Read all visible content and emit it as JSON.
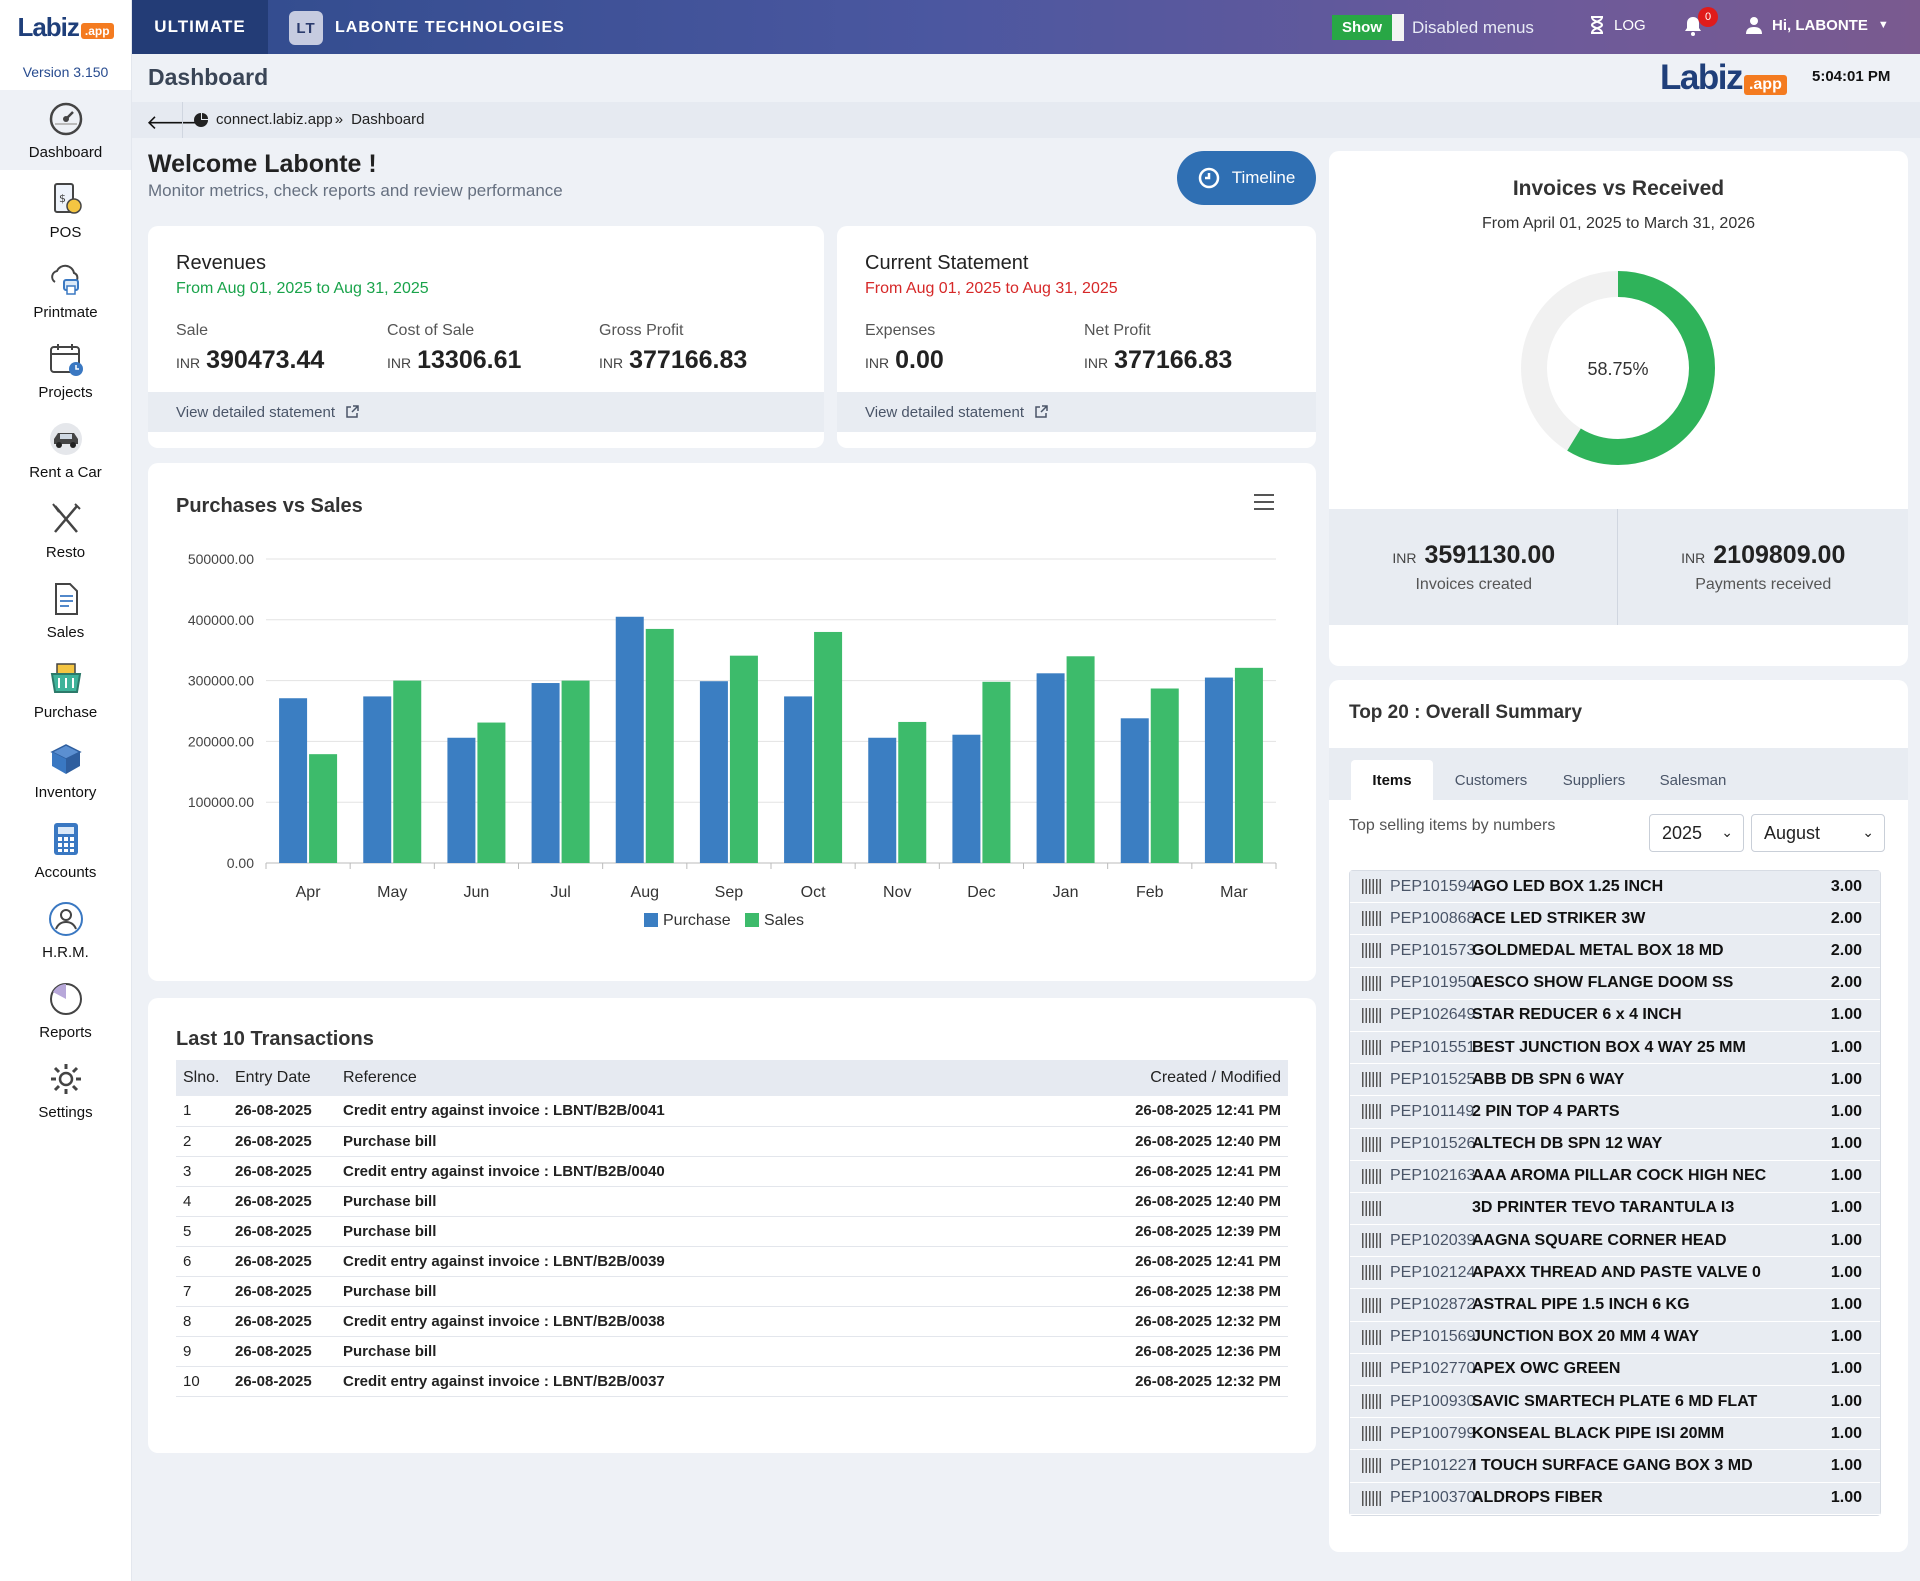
{
  "brand": {
    "word": "Labiz",
    "suffix": ".app"
  },
  "version": "Version 3.150",
  "nav": [
    {
      "label": "Dashboard",
      "icon": "gauge-icon",
      "active": true
    },
    {
      "label": "POS",
      "icon": "pos-receipt-icon"
    },
    {
      "label": "Printmate",
      "icon": "cloud-printer-icon"
    },
    {
      "label": "Projects",
      "icon": "calendar-clock-icon"
    },
    {
      "label": "Rent a Car",
      "icon": "car-icon"
    },
    {
      "label": "Resto",
      "icon": "fork-knife-icon"
    },
    {
      "label": "Sales",
      "icon": "document-icon"
    },
    {
      "label": "Purchase",
      "icon": "basket-icon"
    },
    {
      "label": "Inventory",
      "icon": "box-icon"
    },
    {
      "label": "Accounts",
      "icon": "calculator-icon"
    },
    {
      "label": "H.R.M.",
      "icon": "user-circle-icon"
    },
    {
      "label": "Reports",
      "icon": "pie-chart-icon"
    },
    {
      "label": "Settings",
      "icon": "gear-icon"
    }
  ],
  "topbar": {
    "plan": "ULTIMATE",
    "company_badge": "LT",
    "company": "LABONTE TECHNOLOGIES",
    "toggle_label": "Show",
    "disabled_menus": "Disabled menus",
    "log": "LOG",
    "notifications": "0",
    "user": "Hi, LABONTE"
  },
  "page": {
    "title": "Dashboard",
    "time": "5:04:01 PM",
    "crumb_site": "connect.labiz.app",
    "crumb_sep": "»",
    "crumb_page": "Dashboard",
    "welcome": "Welcome Labonte !",
    "subtitle": "Monitor metrics, check reports and review performance",
    "timeline": "Timeline"
  },
  "revenues": {
    "title": "Revenues",
    "range": "From Aug 01, 2025 to Aug 31, 2025",
    "currency": "INR",
    "sale_label": "Sale",
    "sale": "390473.44",
    "cost_label": "Cost of Sale",
    "cost": "13306.61",
    "gross_label": "Gross Profit",
    "gross": "377166.83",
    "link": "View detailed statement"
  },
  "statement": {
    "title": "Current Statement",
    "range": "From Aug 01, 2025 to Aug 31, 2025",
    "currency": "INR",
    "expenses_label": "Expenses",
    "expenses": "0.00",
    "net_label": "Net Profit",
    "net": "377166.83",
    "link": "View detailed statement"
  },
  "chart_data": {
    "type": "bar",
    "title": "Purchases vs Sales",
    "categories": [
      "Apr",
      "May",
      "Jun",
      "Jul",
      "Aug",
      "Sep",
      "Oct",
      "Nov",
      "Dec",
      "Jan",
      "Feb",
      "Mar"
    ],
    "series": [
      {
        "name": "Purchase",
        "color": "#3b7ec2",
        "values": [
          271000,
          274000,
          206000,
          296000,
          405000,
          299000,
          274000,
          206000,
          211000,
          312000,
          238000,
          305000
        ]
      },
      {
        "name": "Sales",
        "color": "#3dbb6b",
        "values": [
          179000,
          300000,
          231000,
          300000,
          385000,
          341000,
          380000,
          232000,
          298000,
          340000,
          287000,
          321000
        ]
      }
    ],
    "ylim": [
      0,
      500000
    ],
    "yticks": [
      "0.00",
      "100000.00",
      "200000.00",
      "300000.00",
      "400000.00",
      "500000.00"
    ],
    "legend": "bottom-center",
    "grid": true
  },
  "transactions": {
    "title": "Last 10 Transactions",
    "headers": [
      "Slno.",
      "Entry Date",
      "Reference",
      "Created / Modified"
    ],
    "rows": [
      [
        "1",
        "26-08-2025",
        "Credit entry against invoice : LBNT/B2B/0041",
        "26-08-2025 12:41 PM"
      ],
      [
        "2",
        "26-08-2025",
        "Purchase bill",
        "26-08-2025 12:40 PM"
      ],
      [
        "3",
        "26-08-2025",
        "Credit entry against invoice : LBNT/B2B/0040",
        "26-08-2025 12:41 PM"
      ],
      [
        "4",
        "26-08-2025",
        "Purchase bill",
        "26-08-2025 12:40 PM"
      ],
      [
        "5",
        "26-08-2025",
        "Purchase bill",
        "26-08-2025 12:39 PM"
      ],
      [
        "6",
        "26-08-2025",
        "Credit entry against invoice : LBNT/B2B/0039",
        "26-08-2025 12:41 PM"
      ],
      [
        "7",
        "26-08-2025",
        "Purchase bill",
        "26-08-2025 12:38 PM"
      ],
      [
        "8",
        "26-08-2025",
        "Credit entry against invoice : LBNT/B2B/0038",
        "26-08-2025 12:32 PM"
      ],
      [
        "9",
        "26-08-2025",
        "Purchase bill",
        "26-08-2025 12:36 PM"
      ],
      [
        "10",
        "26-08-2025",
        "Credit entry against invoice : LBNT/B2B/0037",
        "26-08-2025 12:32 PM"
      ]
    ]
  },
  "invoices": {
    "title": "Invoices vs Received",
    "range": "From April 01, 2025 to March 31, 2026",
    "percent": "58.75%",
    "percent_value": 0.5875,
    "currency": "INR",
    "created": "3591130.00",
    "created_label": "Invoices created",
    "received": "2109809.00",
    "received_label": "Payments received"
  },
  "top20": {
    "title": "Top 20 : Overall Summary",
    "tabs": [
      "Items",
      "Customers",
      "Suppliers",
      "Salesman"
    ],
    "subtitle": "Top selling items by numbers",
    "year": "2025",
    "month": "August",
    "items": [
      {
        "code": "PEP101594",
        "name": "AGO LED BOX 1.25 INCH",
        "qty": "3.00"
      },
      {
        "code": "PEP100868",
        "name": "ACE LED STRIKER 3W",
        "qty": "2.00"
      },
      {
        "code": "PEP101573",
        "name": "GOLDMEDAL METAL BOX 18 MD",
        "qty": "2.00"
      },
      {
        "code": "PEP101950",
        "name": "AESCO SHOW FLANGE DOOM SS",
        "qty": "2.00"
      },
      {
        "code": "PEP102649",
        "name": "STAR REDUCER 6 x 4 INCH",
        "qty": "1.00"
      },
      {
        "code": "PEP101551",
        "name": "BEST JUNCTION BOX 4 WAY 25 MM",
        "qty": "1.00"
      },
      {
        "code": "PEP101525",
        "name": "ABB DB SPN 6 WAY",
        "qty": "1.00"
      },
      {
        "code": "PEP101149",
        "name": "2 PIN TOP 4 PARTS",
        "qty": "1.00"
      },
      {
        "code": "PEP101526",
        "name": "ALTECH DB SPN 12 WAY",
        "qty": "1.00"
      },
      {
        "code": "PEP102163",
        "name": "AAA AROMA PILLAR COCK HIGH NEC",
        "qty": "1.00"
      },
      {
        "code": "",
        "name": "3D PRINTER TEVO TARANTULA I3",
        "qty": "1.00"
      },
      {
        "code": "PEP102039",
        "name": "AAGNA SQUARE CORNER HEAD",
        "qty": "1.00"
      },
      {
        "code": "PEP102124",
        "name": "APAXX THREAD AND PASTE VALVE 0",
        "qty": "1.00"
      },
      {
        "code": "PEP102872",
        "name": "ASTRAL PIPE 1.5 INCH 6 KG",
        "qty": "1.00"
      },
      {
        "code": "PEP101569",
        "name": "JUNCTION BOX 20 MM 4 WAY",
        "qty": "1.00"
      },
      {
        "code": "PEP102770",
        "name": "APEX OWC GREEN",
        "qty": "1.00"
      },
      {
        "code": "PEP100930",
        "name": "SAVIC SMARTECH PLATE 6 MD FLAT",
        "qty": "1.00"
      },
      {
        "code": "PEP100799",
        "name": "KONSEAL BLACK PIPE ISI 20MM",
        "qty": "1.00"
      },
      {
        "code": "PEP101227",
        "name": "I TOUCH SURFACE GANG BOX 3 MD",
        "qty": "1.00"
      },
      {
        "code": "PEP100370",
        "name": "ALDROPS FIBER",
        "qty": "1.00"
      }
    ]
  }
}
